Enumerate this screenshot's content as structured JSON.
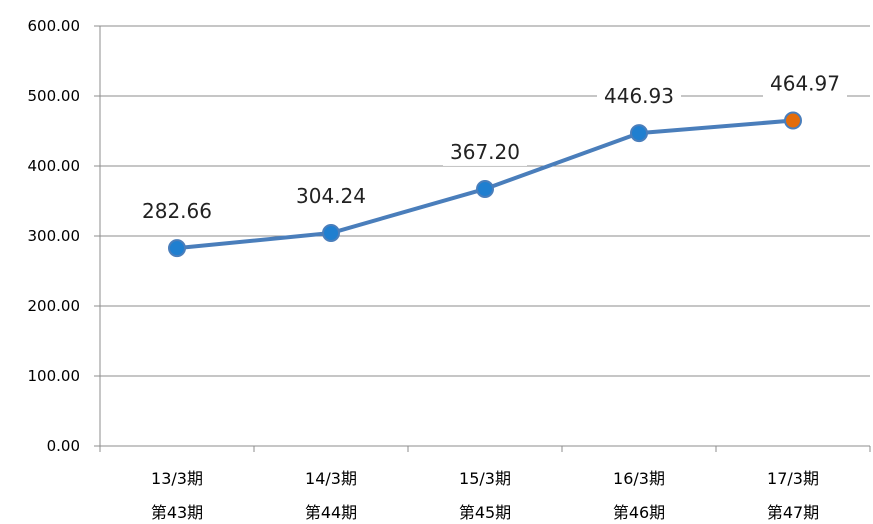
{
  "chart_data": {
    "type": "line",
    "title_fragment": "",
    "categories": [
      [
        "13/3期",
        "第43期"
      ],
      [
        "14/3期",
        "第44期"
      ],
      [
        "15/3期",
        "第45期"
      ],
      [
        "16/3期",
        "第46期"
      ],
      [
        "17/3期",
        "第47期"
      ]
    ],
    "values": [
      282.66,
      304.24,
      367.2,
      446.93,
      464.97
    ],
    "data_labels": [
      "282.66",
      "304.24",
      "367.20",
      "446.93",
      "464.97"
    ],
    "yticks": [
      "0.00",
      "100.00",
      "200.00",
      "300.00",
      "400.00",
      "500.00",
      "600.00"
    ],
    "ylim": [
      0,
      600
    ],
    "ystep": 100,
    "grid": true,
    "colors": {
      "line": "#4a7ebb",
      "marker": "#1f7fd0",
      "marker_highlight": "#e46c0a",
      "grid": "#8c8c8c",
      "axis": "#8c8c8c"
    }
  }
}
